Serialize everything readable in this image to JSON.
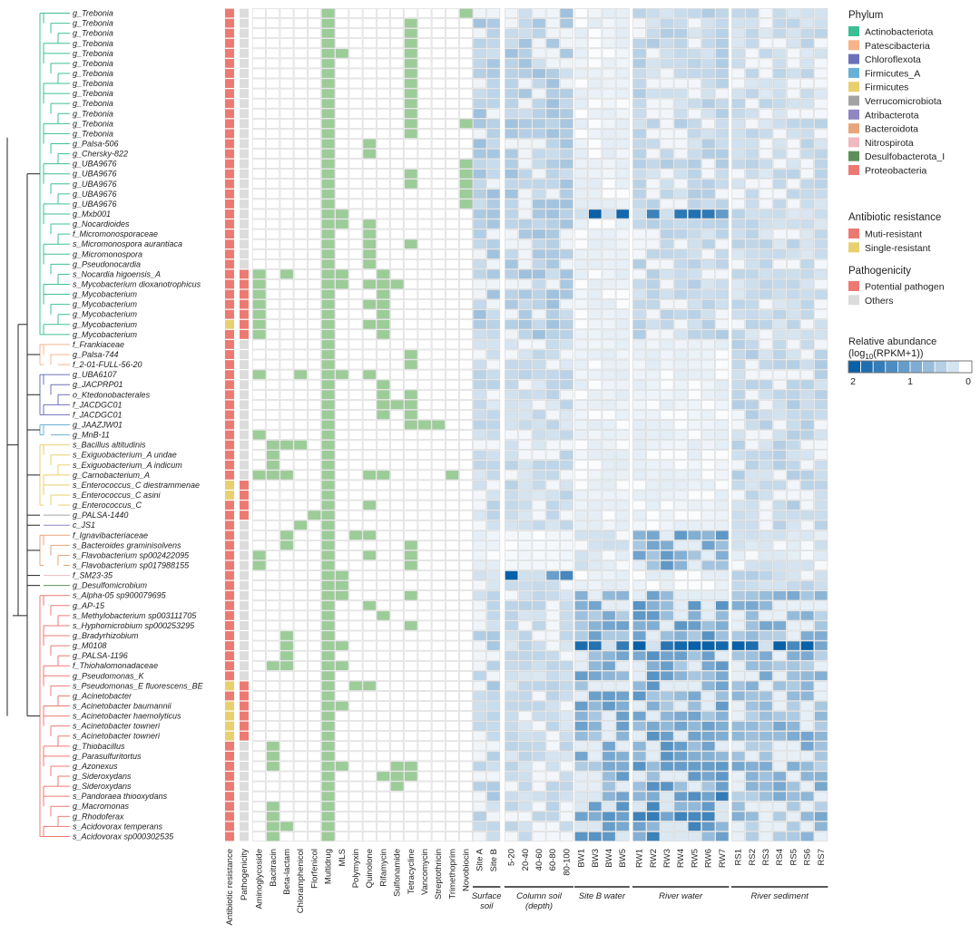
{
  "colors": {
    "Actinobacteriota": "#3dbf95",
    "Patescibacteria": "#f7b48c",
    "Chloroflexota": "#6b70b8",
    "Firmicutes_A": "#6ab0d6",
    "Firmicutes": "#e8cf6f",
    "Verrucomicrobiota": "#a3a3a3",
    "Atribacterota": "#8f86c2",
    "Bacteroidota": "#e6a57a",
    "Nitrospirota": "#f0b8bf",
    "Desulfobacterota_I": "#5e8f5a",
    "Proteobacteria": "#ec7a73",
    "multi": "#ec7a73",
    "single": "#e8cf6f",
    "pathogen": "#ec7a73",
    "others": "#dcdcdc",
    "resistance_type": "#9ccc98"
  },
  "chart_data": {
    "type": "heatmap",
    "rows": [
      "g_Trebonia",
      "g_Trebonia",
      "g_Trebonia",
      "g_Trebonia",
      "g_Trebonia",
      "g_Trebonia",
      "g_Trebonia",
      "g_Trebonia",
      "g_Trebonia",
      "g_Trebonia",
      "g_Trebonia",
      "g_Trebonia",
      "g_Trebonia",
      "g_Palsa-506",
      "g_Chersky-822",
      "g_UBA9676",
      "g_UBA9676",
      "g_UBA9676",
      "g_UBA9676",
      "g_UBA9676",
      "g_Mxb001",
      "g_Nocardioides",
      "f_Micromonosporaceae",
      "s_Micromonospora aurantiaca",
      "g_Micromonospora",
      "g_Pseudonocardia",
      "s_Nocardia higoensis_A",
      "s_Mycobacterium dioxanotrophicus",
      "g_Mycobacterium",
      "g_Mycobacterium",
      "g_Mycobacterium",
      "g_Mycobacterium",
      "g_Mycobacterium",
      "f_Frankiaceae",
      "g_Palsa-744",
      "f_2-01-FULL-56-20",
      "g_UBA6107",
      "g_JACPRP01",
      "o_Ktedonobacterales",
      "f_JACDGC01",
      "f_JACDGC01",
      "g_JAAZJW01",
      "g_MnB-11",
      "s_Bacillus altitudinis",
      "s_Exiguobacterium_A undae",
      "s_Exiguobacterium_A indicum",
      "g_Carnobacterium_A",
      "s_Enterococcus_C diestrammenae",
      "s_Enterococcus_C asini",
      "g_Enterococcus_C",
      "g_PALSA-1440",
      "c_JS1",
      "f_Ignavibacteriaceae",
      "s_Bacteroides graminisolvens",
      "s_Flavobacterium sp002422095",
      "s_Flavobacterium sp017988155",
      "f_SM23-35",
      "g_Desulfomicrobium",
      "s_Alpha-05 sp900079695",
      "g_AP-15",
      "s_Methylobacterium sp003111705",
      "s_Hyphomicrobium sp000253295",
      "g_Bradyrhizobium",
      "g_M0108",
      "g_PALSA-1196",
      "f_Thiohalomonadaceae",
      "g_Pseudomonas_K",
      "s_Pseudomonas_E fluorescens_BE",
      "g_Acinetobacter",
      "s_Acinetobacter baumannii",
      "s_Acinetobacter haemolyticus",
      "s_Acinetobacter towneri",
      "s_Acinetobacter towneri",
      "g_Thiobacillus",
      "g_Parasulfuritortus",
      "g_Azonexus",
      "g_Sideroxydans",
      "g_Sideroxydans",
      "s_Pandoraea thiooxydans",
      "g_Macromonas",
      "g_Rhodoferax",
      "s_Acidovorax temperans",
      "s_Acidovorax sp000302535"
    ],
    "row_phylum_counts": [
      {
        "phylum": "Actinobacteriota",
        "count": 33
      },
      {
        "phylum": "Patescibacteria",
        "count": 3
      },
      {
        "phylum": "Chloroflexota",
        "count": 5
      },
      {
        "phylum": "Firmicutes_A",
        "count": 2
      },
      {
        "phylum": "Firmicutes",
        "count": 7
      },
      {
        "phylum": "Verrucomicrobiota",
        "count": 1
      },
      {
        "phylum": "Atribacterota",
        "count": 1
      },
      {
        "phylum": "Bacteroidota",
        "count": 4
      },
      {
        "phylum": "Nitrospirota",
        "count": 1
      },
      {
        "phylum": "Desulfobacterota_I",
        "count": 1
      },
      {
        "phylum": "Proteobacteria",
        "count": 25
      }
    ],
    "annotation_columns": [
      "Antibiotic resistance",
      "Pathogenicity"
    ],
    "single_resistant_rows": [
      31,
      47,
      48,
      67,
      69,
      70,
      71,
      72
    ],
    "pathogen_rows": [
      26,
      27,
      28,
      29,
      30,
      31,
      32,
      47,
      48,
      49,
      50,
      67,
      68,
      69,
      70,
      71,
      72
    ],
    "resistance_columns": [
      "Aminoglycoside",
      "Bacitracin",
      "Beta-lactam",
      "Chloramphenicol",
      "Florfenicol",
      "Multidrug",
      "MLS",
      "Polymyxin",
      "Quinolone",
      "Rifamycin",
      "Sulfonamide",
      "Tetracycline",
      "Vancomycin",
      "Streptothricin",
      "Trimethoprim",
      "Novobiocin"
    ],
    "resistance_presence": [
      [
        5,
        15
      ],
      [
        5,
        11
      ],
      [
        5,
        11
      ],
      [
        5,
        11
      ],
      [
        5,
        6,
        11
      ],
      [
        5,
        11
      ],
      [
        5,
        11
      ],
      [
        5,
        11
      ],
      [
        5,
        11
      ],
      [
        5,
        11
      ],
      [
        5,
        11
      ],
      [
        5,
        11,
        15
      ],
      [
        5,
        11
      ],
      [
        5,
        8
      ],
      [
        5,
        8
      ],
      [
        5,
        15
      ],
      [
        5,
        11,
        15
      ],
      [
        5,
        11,
        15
      ],
      [
        5,
        15
      ],
      [
        5,
        15
      ],
      [
        5,
        6
      ],
      [
        5,
        6,
        8
      ],
      [
        5,
        8
      ],
      [
        5,
        8,
        11
      ],
      [
        5,
        8
      ],
      [
        5,
        8
      ],
      [
        0,
        2,
        5,
        6,
        9
      ],
      [
        0,
        5,
        6,
        8,
        9,
        10
      ],
      [
        0,
        5,
        9
      ],
      [
        0,
        5,
        8,
        9
      ],
      [
        0,
        5,
        9
      ],
      [
        0,
        5,
        8,
        9
      ],
      [
        0,
        5,
        9
      ],
      [
        5
      ],
      [
        5,
        11
      ],
      [
        5,
        11
      ],
      [
        0,
        3,
        5,
        6,
        8
      ],
      [
        5,
        9
      ],
      [
        5,
        9,
        11
      ],
      [
        5,
        9,
        10,
        11
      ],
      [
        5,
        9,
        11
      ],
      [
        5,
        11,
        12,
        13
      ],
      [
        0,
        5
      ],
      [
        1,
        2,
        3,
        5
      ],
      [
        1,
        5
      ],
      [
        1,
        5
      ],
      [
        0,
        1,
        2,
        5,
        8,
        9,
        14
      ],
      [
        5
      ],
      [
        5
      ],
      [
        5,
        8
      ],
      [
        4,
        5
      ],
      [
        3,
        5
      ],
      [
        2,
        5,
        7,
        8
      ],
      [
        2,
        5,
        11
      ],
      [
        0,
        5,
        8,
        11
      ],
      [
        0,
        5,
        11
      ],
      [
        5,
        6
      ],
      [
        5,
        6
      ],
      [
        5,
        6,
        11
      ],
      [
        5,
        8
      ],
      [
        5,
        9
      ],
      [
        5,
        11
      ],
      [
        2,
        5
      ],
      [
        2,
        5,
        6
      ],
      [
        2,
        5
      ],
      [
        1,
        2,
        5,
        6
      ],
      [
        5
      ],
      [
        5,
        7,
        8
      ],
      [
        5
      ],
      [
        5,
        6
      ],
      [
        5
      ],
      [
        5
      ],
      [
        5
      ],
      [
        1,
        5
      ],
      [
        1,
        5
      ],
      [
        1,
        5,
        6,
        10,
        11
      ],
      [
        5,
        9,
        10,
        11
      ],
      [
        5,
        10
      ],
      [
        5
      ],
      [
        1,
        5
      ],
      [
        1,
        5
      ],
      [
        1,
        2,
        5
      ],
      [
        1,
        5
      ]
    ],
    "abundance_columns": [
      "Site A",
      "Site B",
      "5-20",
      "20-40",
      "40-60",
      "60-80",
      "80-100",
      "BW1",
      "BW3",
      "BW4",
      "BW5",
      "RW1",
      "RW2",
      "RW3",
      "RW4",
      "RW5",
      "RW6",
      "RW7",
      "RS1",
      "RS2",
      "RS3",
      "RS4",
      "RS5",
      "RS6",
      "RS7"
    ],
    "column_groups": [
      {
        "label": "Surface soil",
        "count": 2
      },
      {
        "label": "Column soil (depth)",
        "count": 5
      },
      {
        "label": "Site B water",
        "count": 4
      },
      {
        "label": "River water",
        "count": 7
      },
      {
        "label": "River sediment",
        "count": 7
      }
    ],
    "color_scale": {
      "label_line1": "Relative abundance",
      "label_line2": "(log10(RPKM+1))",
      "min": 0,
      "max": 2,
      "ticks": [
        "2",
        "1",
        "0"
      ]
    }
  },
  "labels": {
    "col_sub_labels": [
      "Surface",
      "soil",
      "Column soil",
      "(depth)",
      "Site B water",
      "River water",
      "River sediment"
    ]
  },
  "legend": {
    "phylum_title": "Phylum",
    "phyla": [
      "Actinobacteriota",
      "Patescibacteria",
      "Chloroflexota",
      "Firmicutes_A",
      "Firmicutes",
      "Verrucomicrobiota",
      "Atribacterota",
      "Bacteroidota",
      "Nitrospirota",
      "Desulfobacterota_I",
      "Proteobacteria"
    ],
    "resistance_title": "Antibiotic resistance",
    "resistance_items": [
      "Muti-resistant",
      "Single-resistant"
    ],
    "pathogenicity_title": "Pathogenicity",
    "pathogenicity_items": [
      "Potential pathogen",
      "Others"
    ],
    "abundance_title": "Relative abundance",
    "abundance_sub": "(log",
    "abundance_sub_base": "10",
    "abundance_sub_end": "(RPKM+1))",
    "abundance_ticks": [
      "2",
      "1",
      "0"
    ]
  }
}
